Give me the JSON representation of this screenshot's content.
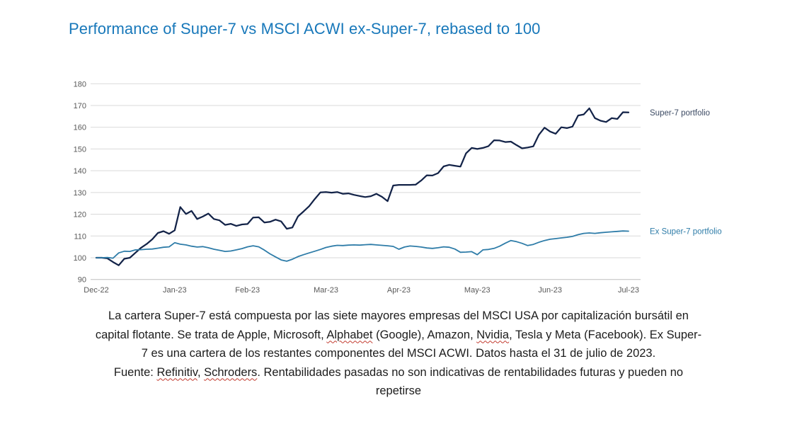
{
  "title": "Performance of Super-7 vs MSCI ACWI ex-Super-7, rebased to 100",
  "colors": {
    "title": "#1878ba",
    "super7_line": "#132348",
    "ex_super7_line": "#2e7ca8",
    "super7_label": "#3c4a63",
    "ex_super7_label": "#2e7ca8",
    "gridline": "#d9d9d9",
    "axis_line": "#bfbfbf",
    "tick_label": "#595959",
    "footnote_text": "#1c1c1c",
    "spellcheck_underline": "#c23b2f"
  },
  "chart_data": {
    "type": "line",
    "title": "Performance of Super-7 vs MSCI ACWI ex-Super-7, rebased to 100",
    "rebase_note": "rebased to 100",
    "x_tick_labels": [
      "Dec-22",
      "Jan-23",
      "Feb-23",
      "Mar-23",
      "Apr-23",
      "May-23",
      "Jun-23",
      "Jul-23"
    ],
    "x_tick_indices": [
      0,
      14,
      27,
      41,
      54,
      68,
      81,
      95
    ],
    "y_ticks": [
      90,
      100,
      110,
      120,
      130,
      140,
      150,
      160,
      170,
      180
    ],
    "ylim": [
      90,
      180
    ],
    "grid": "horizontal",
    "legend_position": "right of line ends",
    "series": [
      {
        "name": "Super-7 portfolio",
        "color": "#132348",
        "label_color": "#3c4a63",
        "end_value": 166.8,
        "values": [
          100.0,
          100.0,
          99.7,
          98.0,
          96.5,
          99.5,
          100.0,
          102.3,
          104.6,
          106.3,
          108.5,
          111.4,
          112.2,
          111.0,
          112.6,
          123.3,
          120.1,
          121.5,
          117.8,
          118.9,
          120.3,
          117.8,
          117.2,
          115.1,
          115.6,
          114.6,
          115.3,
          115.5,
          118.5,
          118.6,
          116.2,
          116.5,
          117.5,
          116.7,
          113.3,
          113.9,
          119.0,
          121.3,
          123.7,
          127.0,
          130.0,
          130.2,
          129.9,
          130.2,
          129.4,
          129.6,
          128.9,
          128.4,
          127.9,
          128.3,
          129.4,
          128.0,
          126.0,
          133.2,
          133.5,
          133.5,
          133.5,
          133.6,
          135.5,
          137.9,
          137.8,
          138.9,
          142.0,
          142.7,
          142.3,
          141.9,
          148.0,
          150.5,
          150.0,
          150.5,
          151.3,
          154.0,
          153.9,
          153.2,
          153.4,
          151.8,
          150.3,
          150.7,
          151.2,
          156.5,
          159.8,
          158.0,
          157.0,
          160.0,
          159.6,
          160.3,
          165.4,
          165.9,
          168.7,
          164.2,
          163.0,
          162.4,
          164.2,
          163.8,
          166.9,
          166.8
        ]
      },
      {
        "name": "Ex Super-7 portfolio",
        "color": "#2e7ca8",
        "label_color": "#2e7ca8",
        "end_value": 112.2,
        "values": [
          100.0,
          100.0,
          100.1,
          99.8,
          102.2,
          103.0,
          102.9,
          103.6,
          103.7,
          103.9,
          104.0,
          104.4,
          104.8,
          105.0,
          106.9,
          106.2,
          105.9,
          105.3,
          104.9,
          105.1,
          104.6,
          103.9,
          103.4,
          102.9,
          103.1,
          103.6,
          104.2,
          105.0,
          105.5,
          105.0,
          103.5,
          101.8,
          100.4,
          99.0,
          98.4,
          99.3,
          100.5,
          101.4,
          102.2,
          103.0,
          103.8,
          104.7,
          105.3,
          105.7,
          105.6,
          105.8,
          105.9,
          105.8,
          106.0,
          106.1,
          105.9,
          105.7,
          105.5,
          105.2,
          103.9,
          104.9,
          105.4,
          105.2,
          104.9,
          104.5,
          104.3,
          104.6,
          105.0,
          104.8,
          104.0,
          102.5,
          102.6,
          102.8,
          101.4,
          103.6,
          103.8,
          104.3,
          105.3,
          106.7,
          107.9,
          107.4,
          106.6,
          105.6,
          106.1,
          107.1,
          107.9,
          108.5,
          108.8,
          109.1,
          109.4,
          109.8,
          110.6,
          111.2,
          111.4,
          111.2,
          111.5,
          111.7,
          111.9,
          112.1,
          112.3,
          112.2
        ]
      }
    ]
  },
  "footnote": {
    "lines": [
      [
        {
          "t": "La cartera Super-7 está compuesta por las siete mayores empresas del MSCI USA por capitalización bursátil en"
        }
      ],
      [
        {
          "t": "capital flotante. Se trata de Apple, Microsoft, "
        },
        {
          "t": "Alphabet",
          "sq": true
        },
        {
          "t": " (Google), Amazon, "
        },
        {
          "t": "Nvidia",
          "sq": true
        },
        {
          "t": ", Tesla y Meta (Facebook). Ex Super-"
        }
      ],
      [
        {
          "t": "7 es una cartera de los restantes componentes del MSCI ACWI. Datos hasta el 31 de julio de 2023."
        }
      ],
      [
        {
          "t": "Fuente: "
        },
        {
          "t": "Refinitiv",
          "sq": true
        },
        {
          "t": ", "
        },
        {
          "t": "Schroders",
          "sq": true
        },
        {
          "t": ". Rentabilidades pasadas no son indicativas de rentabilidades futuras y pueden no"
        }
      ],
      [
        {
          "t": "repetirse"
        }
      ]
    ]
  }
}
